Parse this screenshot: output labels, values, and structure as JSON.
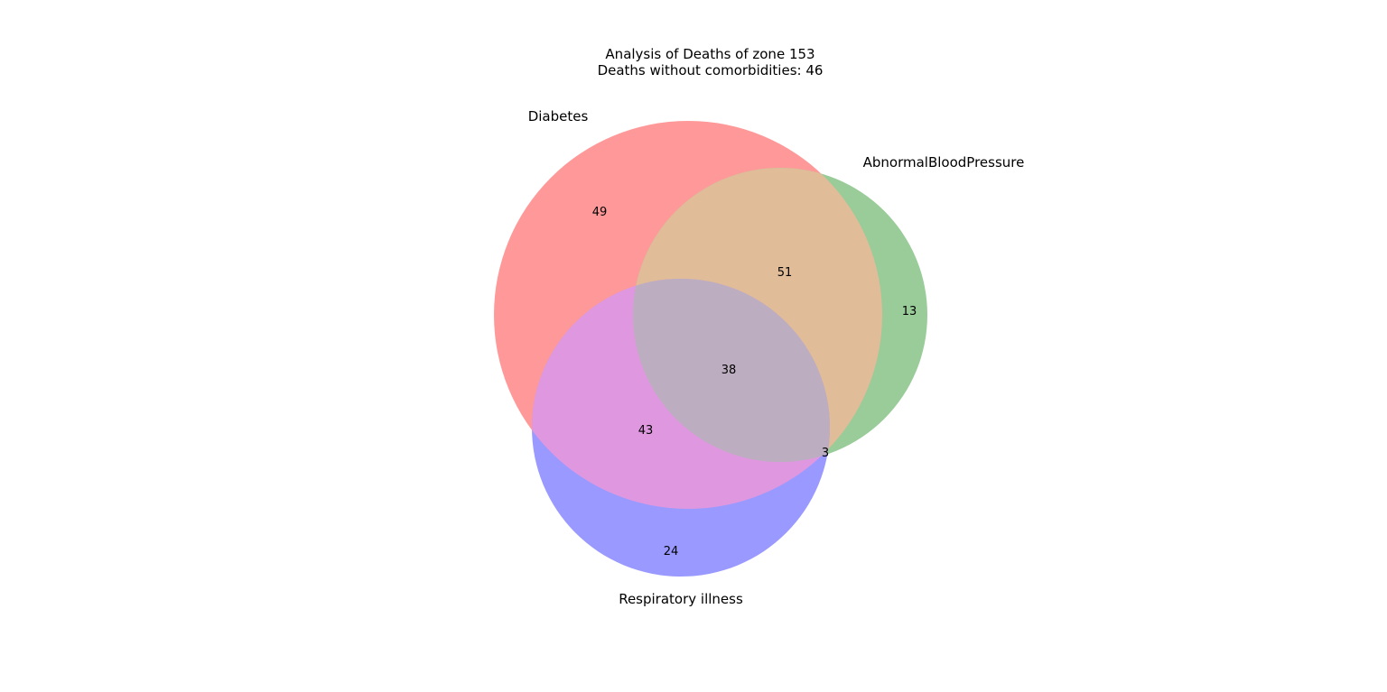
{
  "chart_data": {
    "type": "venn",
    "title": "Analysis of Deaths of zone 153",
    "subtitle": "Deaths without comorbidities: 46",
    "sets": [
      {
        "name": "Diabetes",
        "color": "#ff9999"
      },
      {
        "name": "AbnormalBloodPressure",
        "color": "#99cc99"
      },
      {
        "name": "Respiratory illness",
        "color": "#9999ff"
      }
    ],
    "regions": [
      {
        "sets": [
          "Diabetes"
        ],
        "value": 49
      },
      {
        "sets": [
          "AbnormalBloodPressure"
        ],
        "value": 13
      },
      {
        "sets": [
          "Respiratory illness"
        ],
        "value": 24
      },
      {
        "sets": [
          "Diabetes",
          "AbnormalBloodPressure"
        ],
        "value": 51
      },
      {
        "sets": [
          "Diabetes",
          "Respiratory illness"
        ],
        "value": 43
      },
      {
        "sets": [
          "AbnormalBloodPressure",
          "Respiratory illness"
        ],
        "value": 3
      },
      {
        "sets": [
          "Diabetes",
          "AbnormalBloodPressure",
          "Respiratory illness"
        ],
        "value": 38
      }
    ],
    "region_colors": {
      "Diabetes+AbnormalBloodPressure": "#e0bc98",
      "Diabetes+Respiratory illness": "#df98e0",
      "AbnormalBloodPressure+Respiratory illness": "#bdadc0",
      "all": "#bdadc0"
    }
  }
}
